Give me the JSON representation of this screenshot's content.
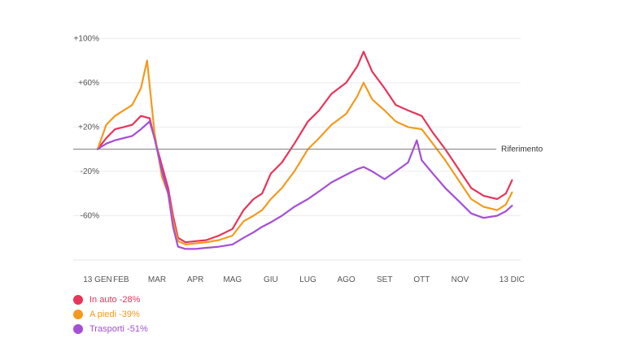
{
  "chart_data": {
    "type": "line",
    "title": "",
    "xlabel": "",
    "ylabel": "",
    "ylim": [
      -100,
      120
    ],
    "xlim": [
      "2020-01-13",
      "2020-12-20"
    ],
    "y_ticks": [
      {
        "value": 100,
        "label": "+100%"
      },
      {
        "value": 60,
        "label": "+60%"
      },
      {
        "value": 20,
        "label": "+20%"
      },
      {
        "value": -20,
        "label": "-20%"
      },
      {
        "value": -60,
        "label": "-60%"
      }
    ],
    "x_ticks": [
      {
        "date": "2020-01-13",
        "label": "13 GEN"
      },
      {
        "date": "2020-02-01",
        "label": "FEB"
      },
      {
        "date": "2020-03-01",
        "label": "MAR"
      },
      {
        "date": "2020-04-01",
        "label": "APR"
      },
      {
        "date": "2020-05-01",
        "label": "MAG"
      },
      {
        "date": "2020-06-01",
        "label": "GIU"
      },
      {
        "date": "2020-07-01",
        "label": "LUG"
      },
      {
        "date": "2020-08-01",
        "label": "AGO"
      },
      {
        "date": "2020-09-01",
        "label": "SET"
      },
      {
        "date": "2020-10-01",
        "label": "OTT"
      },
      {
        "date": "2020-11-01",
        "label": "NOV"
      },
      {
        "date": "2020-12-13",
        "label": "13 DIC"
      }
    ],
    "reference": {
      "value": 0,
      "label": "Riferimento"
    },
    "legend_position": "bottom-left",
    "grid": true,
    "series": [
      {
        "name": "In auto",
        "legend_label": "In auto -28%",
        "color": "#e8345a",
        "points": [
          [
            "2020-01-13",
            0
          ],
          [
            "2020-01-20",
            10
          ],
          [
            "2020-01-27",
            18
          ],
          [
            "2020-02-03",
            20
          ],
          [
            "2020-02-10",
            22
          ],
          [
            "2020-02-17",
            30
          ],
          [
            "2020-02-24",
            28
          ],
          [
            "2020-02-28",
            10
          ],
          [
            "2020-03-05",
            -15
          ],
          [
            "2020-03-10",
            -35
          ],
          [
            "2020-03-14",
            -60
          ],
          [
            "2020-03-18",
            -80
          ],
          [
            "2020-03-24",
            -84
          ],
          [
            "2020-04-01",
            -83
          ],
          [
            "2020-04-10",
            -82
          ],
          [
            "2020-04-20",
            -78
          ],
          [
            "2020-05-01",
            -72
          ],
          [
            "2020-05-10",
            -55
          ],
          [
            "2020-05-18",
            -45
          ],
          [
            "2020-05-25",
            -40
          ],
          [
            "2020-06-01",
            -22
          ],
          [
            "2020-06-10",
            -12
          ],
          [
            "2020-06-20",
            5
          ],
          [
            "2020-07-01",
            25
          ],
          [
            "2020-07-10",
            35
          ],
          [
            "2020-07-20",
            50
          ],
          [
            "2020-08-01",
            60
          ],
          [
            "2020-08-10",
            75
          ],
          [
            "2020-08-15",
            88
          ],
          [
            "2020-08-22",
            70
          ],
          [
            "2020-09-01",
            55
          ],
          [
            "2020-09-10",
            40
          ],
          [
            "2020-09-20",
            35
          ],
          [
            "2020-10-01",
            30
          ],
          [
            "2020-10-10",
            15
          ],
          [
            "2020-10-20",
            0
          ],
          [
            "2020-11-01",
            -20
          ],
          [
            "2020-11-10",
            -35
          ],
          [
            "2020-11-20",
            -42
          ],
          [
            "2020-12-01",
            -45
          ],
          [
            "2020-12-08",
            -40
          ],
          [
            "2020-12-13",
            -28
          ]
        ]
      },
      {
        "name": "A piedi",
        "legend_label": "A piedi -39%",
        "color": "#f39a1d",
        "points": [
          [
            "2020-01-13",
            0
          ],
          [
            "2020-01-20",
            22
          ],
          [
            "2020-01-27",
            30
          ],
          [
            "2020-02-03",
            35
          ],
          [
            "2020-02-10",
            40
          ],
          [
            "2020-02-17",
            55
          ],
          [
            "2020-02-22",
            80
          ],
          [
            "2020-02-28",
            15
          ],
          [
            "2020-03-05",
            -25
          ],
          [
            "2020-03-10",
            -40
          ],
          [
            "2020-03-14",
            -65
          ],
          [
            "2020-03-18",
            -83
          ],
          [
            "2020-03-24",
            -86
          ],
          [
            "2020-04-01",
            -85
          ],
          [
            "2020-04-10",
            -84
          ],
          [
            "2020-04-20",
            -82
          ],
          [
            "2020-05-01",
            -78
          ],
          [
            "2020-05-10",
            -65
          ],
          [
            "2020-05-18",
            -60
          ],
          [
            "2020-05-25",
            -55
          ],
          [
            "2020-06-01",
            -45
          ],
          [
            "2020-06-10",
            -35
          ],
          [
            "2020-06-20",
            -20
          ],
          [
            "2020-07-01",
            0
          ],
          [
            "2020-07-10",
            10
          ],
          [
            "2020-07-20",
            22
          ],
          [
            "2020-08-01",
            32
          ],
          [
            "2020-08-10",
            48
          ],
          [
            "2020-08-15",
            60
          ],
          [
            "2020-08-22",
            45
          ],
          [
            "2020-09-01",
            35
          ],
          [
            "2020-09-10",
            25
          ],
          [
            "2020-09-20",
            20
          ],
          [
            "2020-10-01",
            18
          ],
          [
            "2020-10-10",
            5
          ],
          [
            "2020-10-20",
            -10
          ],
          [
            "2020-11-01",
            -30
          ],
          [
            "2020-11-10",
            -45
          ],
          [
            "2020-11-20",
            -52
          ],
          [
            "2020-12-01",
            -55
          ],
          [
            "2020-12-08",
            -50
          ],
          [
            "2020-12-13",
            -39
          ]
        ]
      },
      {
        "name": "Trasporti",
        "legend_label": "Trasporti -51%",
        "color": "#a54fd6",
        "points": [
          [
            "2020-01-13",
            0
          ],
          [
            "2020-01-20",
            5
          ],
          [
            "2020-01-27",
            8
          ],
          [
            "2020-02-03",
            10
          ],
          [
            "2020-02-10",
            12
          ],
          [
            "2020-02-17",
            18
          ],
          [
            "2020-02-24",
            25
          ],
          [
            "2020-02-28",
            10
          ],
          [
            "2020-03-05",
            -20
          ],
          [
            "2020-03-10",
            -40
          ],
          [
            "2020-03-14",
            -70
          ],
          [
            "2020-03-18",
            -88
          ],
          [
            "2020-03-24",
            -90
          ],
          [
            "2020-04-01",
            -90
          ],
          [
            "2020-04-10",
            -89
          ],
          [
            "2020-04-20",
            -88
          ],
          [
            "2020-05-01",
            -86
          ],
          [
            "2020-05-10",
            -80
          ],
          [
            "2020-05-18",
            -75
          ],
          [
            "2020-05-25",
            -70
          ],
          [
            "2020-06-01",
            -66
          ],
          [
            "2020-06-10",
            -60
          ],
          [
            "2020-06-20",
            -52
          ],
          [
            "2020-07-01",
            -45
          ],
          [
            "2020-07-10",
            -38
          ],
          [
            "2020-07-20",
            -30
          ],
          [
            "2020-08-01",
            -23
          ],
          [
            "2020-08-10",
            -18
          ],
          [
            "2020-08-15",
            -16
          ],
          [
            "2020-08-22",
            -20
          ],
          [
            "2020-09-01",
            -27
          ],
          [
            "2020-09-10",
            -20
          ],
          [
            "2020-09-20",
            -12
          ],
          [
            "2020-09-27",
            8
          ],
          [
            "2020-10-01",
            -10
          ],
          [
            "2020-10-10",
            -22
          ],
          [
            "2020-10-20",
            -35
          ],
          [
            "2020-11-01",
            -48
          ],
          [
            "2020-11-10",
            -58
          ],
          [
            "2020-11-20",
            -62
          ],
          [
            "2020-12-01",
            -60
          ],
          [
            "2020-12-08",
            -56
          ],
          [
            "2020-12-13",
            -51
          ]
        ]
      }
    ]
  }
}
